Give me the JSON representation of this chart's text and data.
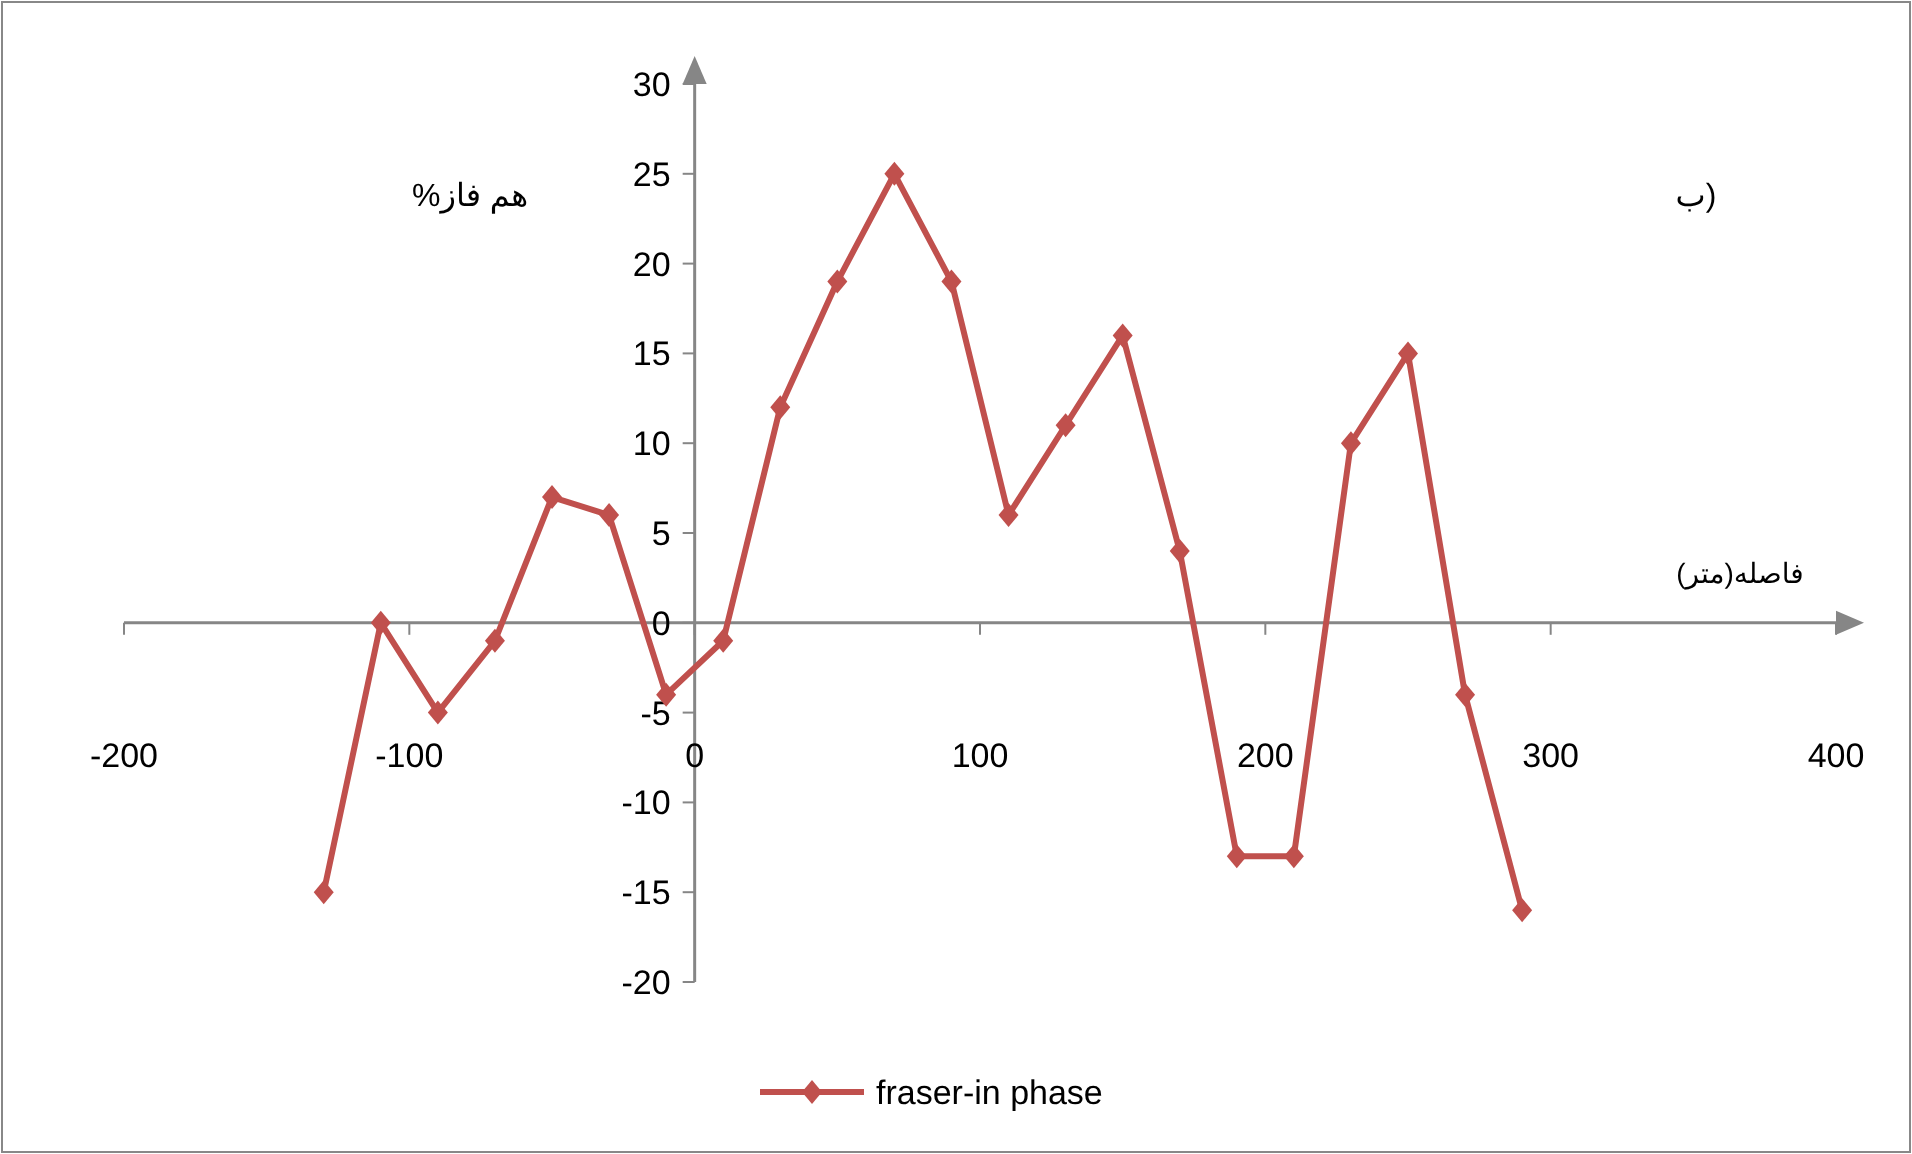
{
  "chart_data": {
    "type": "line",
    "xlabel": "فاصله(متر)",
    "ylabel": "%هم فاز",
    "annotations": [
      "ب)"
    ],
    "x": [
      -130,
      -110,
      -90,
      -70,
      -50,
      -30,
      -10,
      10,
      30,
      50,
      70,
      90,
      110,
      130,
      150,
      170,
      190,
      210,
      230,
      250,
      270,
      290
    ],
    "series": [
      {
        "name": "fraser-in phase",
        "color": "#c0504d",
        "values": [
          -15,
          0,
          -5,
          -1,
          7,
          6,
          -4,
          -1,
          12,
          19,
          25,
          19,
          6,
          11,
          16,
          4,
          -13,
          -13,
          10,
          15,
          -4,
          -16
        ]
      }
    ],
    "xlim": [
      -200,
      400
    ],
    "xticks": [
      -200,
      -100,
      0,
      100,
      200,
      300,
      400
    ],
    "ylim": [
      -20,
      30
    ],
    "yticks": [
      -20,
      -15,
      -10,
      -5,
      0,
      5,
      10,
      15,
      20,
      25,
      30
    ],
    "legend": "bottom",
    "marker": "diamond",
    "line_style": "solid"
  }
}
